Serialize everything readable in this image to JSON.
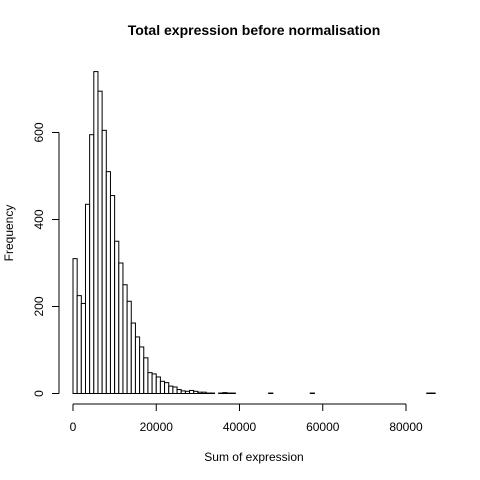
{
  "chart_data": {
    "type": "bar",
    "title": "Total expression before normalisation",
    "xlabel": "Sum of expression",
    "ylabel": "Frequency",
    "bin_width": 1000,
    "bins_start": 0,
    "values": [
      310,
      225,
      207,
      435,
      595,
      740,
      695,
      605,
      510,
      455,
      350,
      300,
      250,
      212,
      162,
      130,
      107,
      82,
      48,
      45,
      38,
      28,
      25,
      17,
      15,
      9,
      6,
      5,
      7,
      5,
      3,
      3,
      1,
      1,
      0,
      1,
      2,
      1,
      1,
      0,
      0,
      0,
      0,
      0,
      0,
      0,
      0,
      1,
      0,
      0,
      0,
      0,
      0,
      0,
      0,
      0,
      0,
      1,
      0,
      0,
      0,
      0,
      0,
      0,
      0,
      0,
      0,
      0,
      0,
      0,
      0,
      0,
      0,
      0,
      0,
      0,
      0,
      0,
      0,
      0,
      0,
      0,
      0,
      0,
      0,
      1,
      1
    ],
    "xticks": [
      "0",
      "20000",
      "40000",
      "60000",
      "80000"
    ],
    "xtick_values": [
      0,
      20000,
      40000,
      60000,
      80000
    ],
    "yticks": [
      "0",
      "200",
      "400",
      "600"
    ],
    "ytick_values": [
      0,
      200,
      400,
      600
    ],
    "xlim": [
      0,
      87000
    ],
    "ylim": [
      0,
      740
    ],
    "grid": false,
    "legend": "none"
  }
}
